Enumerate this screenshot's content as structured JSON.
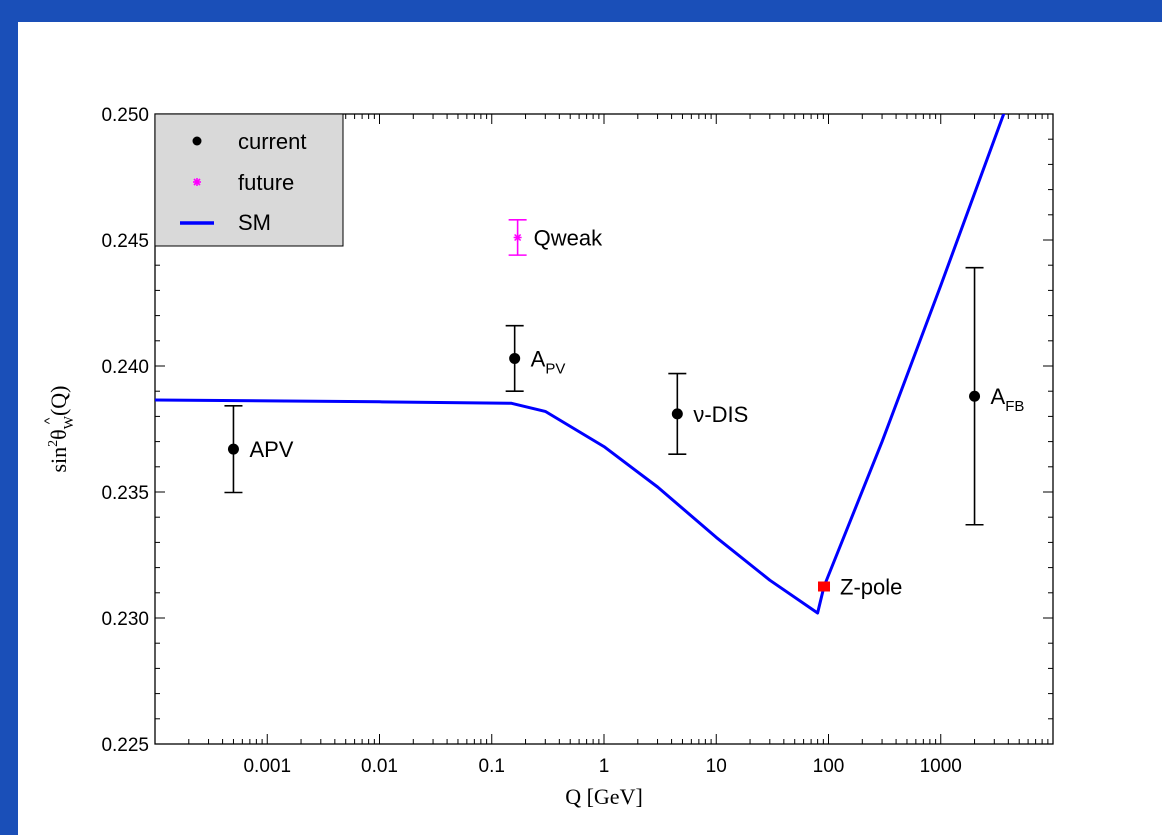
{
  "chart_data": {
    "type": "scatter",
    "xlabel": "Q [GeV]",
    "ylabel": {
      "prefix": "sin",
      "sup": "2",
      "theta": "θ",
      "sub": "W",
      "suffix": "(Q)"
    },
    "xscale": "log",
    "xlim": [
      0.0001,
      10000
    ],
    "ylim": [
      0.225,
      0.25
    ],
    "xticks": [
      {
        "value": 0.001,
        "label": "0.001"
      },
      {
        "value": 0.01,
        "label": "0.01"
      },
      {
        "value": 0.1,
        "label": "0.1"
      },
      {
        "value": 1,
        "label": "1"
      },
      {
        "value": 10,
        "label": "10"
      },
      {
        "value": 100,
        "label": "100"
      },
      {
        "value": 1000,
        "label": "1000"
      }
    ],
    "yticks": [
      {
        "value": 0.225,
        "label": "0.225"
      },
      {
        "value": 0.23,
        "label": "0.230"
      },
      {
        "value": 0.235,
        "label": "0.235"
      },
      {
        "value": 0.24,
        "label": "0.240"
      },
      {
        "value": 0.245,
        "label": "0.245"
      },
      {
        "value": 0.25,
        "label": "0.250"
      }
    ],
    "legend": {
      "placement": "top-left",
      "entries": [
        {
          "label": "current",
          "kind": "dot",
          "color": "#000000"
        },
        {
          "label": "future",
          "kind": "star",
          "color": "#ff00ff"
        },
        {
          "label": "SM",
          "kind": "line",
          "color": "#0000ff"
        }
      ]
    },
    "sm_curve": {
      "name": "SM",
      "color": "#0000ff",
      "points": [
        [
          0.0001,
          0.23865
        ],
        [
          0.01,
          0.23858
        ],
        [
          0.15,
          0.23852
        ],
        [
          0.3,
          0.2382
        ],
        [
          1.0,
          0.2368
        ],
        [
          3.0,
          0.2352
        ],
        [
          10.0,
          0.2332
        ],
        [
          30.0,
          0.2315
        ],
        [
          80.0,
          0.2302
        ],
        [
          91.19,
          0.23125
        ],
        [
          300.0,
          0.237
        ],
        [
          1000.0,
          0.2432
        ],
        [
          4000.0,
          0.2505
        ]
      ]
    },
    "points": [
      {
        "label": "APV",
        "x": 0.0005,
        "y": 0.2367,
        "err": 0.00172,
        "kind": "current",
        "color": "#000000"
      },
      {
        "label": "A",
        "sub": "PV",
        "x": 0.16,
        "y": 0.2403,
        "err": 0.0013,
        "kind": "current",
        "color": "#000000"
      },
      {
        "label": "Qweak",
        "x": 0.17,
        "y": 0.2451,
        "err": 0.0007,
        "kind": "future",
        "color": "#ff00ff"
      },
      {
        "label": "ν-DIS",
        "x": 4.5,
        "y": 0.2381,
        "err": 0.0016,
        "kind": "current",
        "color": "#000000"
      },
      {
        "label": "Z-pole",
        "x": 91.19,
        "y": 0.23125,
        "err": 0,
        "kind": "zpole",
        "color": "#ff0000"
      },
      {
        "label": "A",
        "sub": "FB",
        "x": 2000,
        "y": 0.2388,
        "err": 0.0051,
        "kind": "current",
        "color": "#000000"
      }
    ]
  }
}
